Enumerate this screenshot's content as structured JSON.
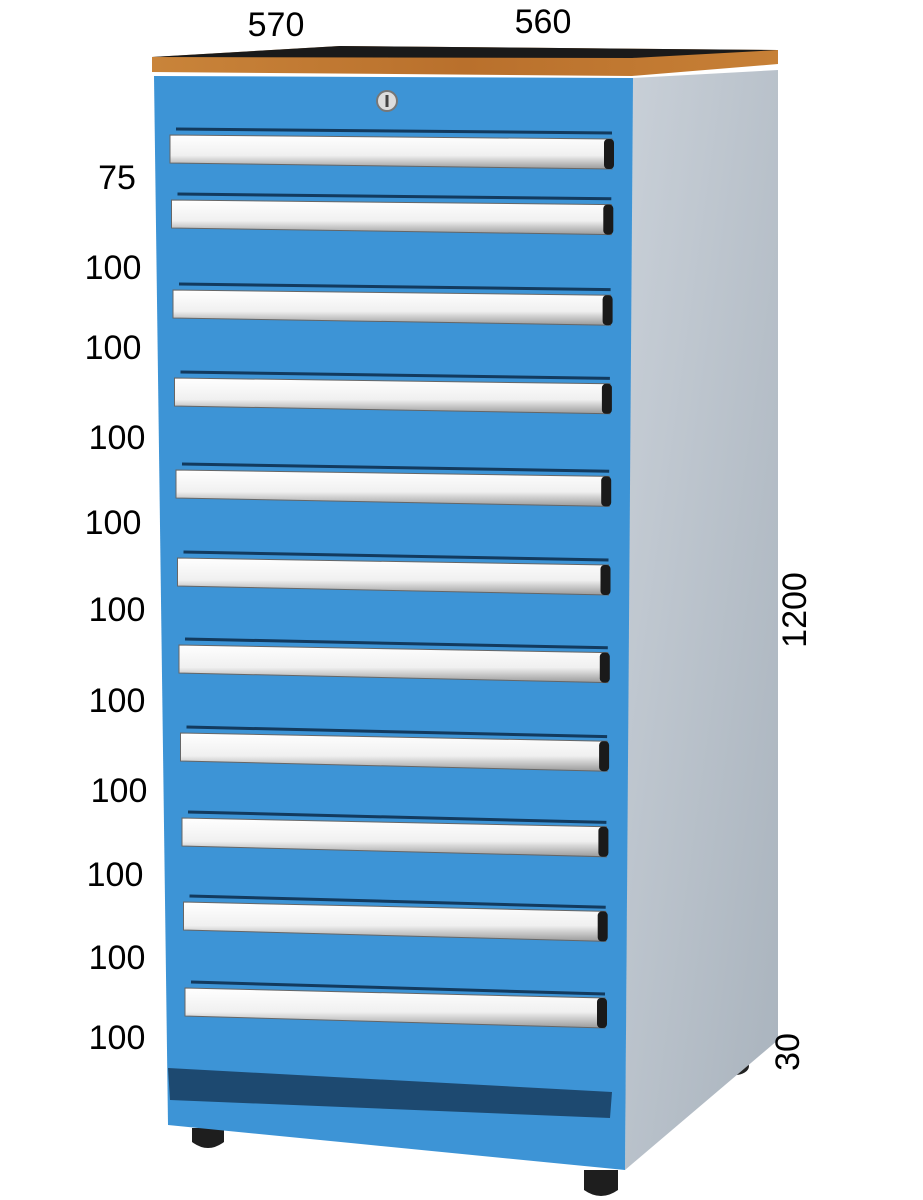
{
  "dimensions": {
    "width": 570,
    "depth": 560,
    "height": 1200,
    "feet": 30
  },
  "drawers": [
    75,
    100,
    100,
    100,
    100,
    100,
    100,
    100,
    100,
    100,
    100
  ]
}
